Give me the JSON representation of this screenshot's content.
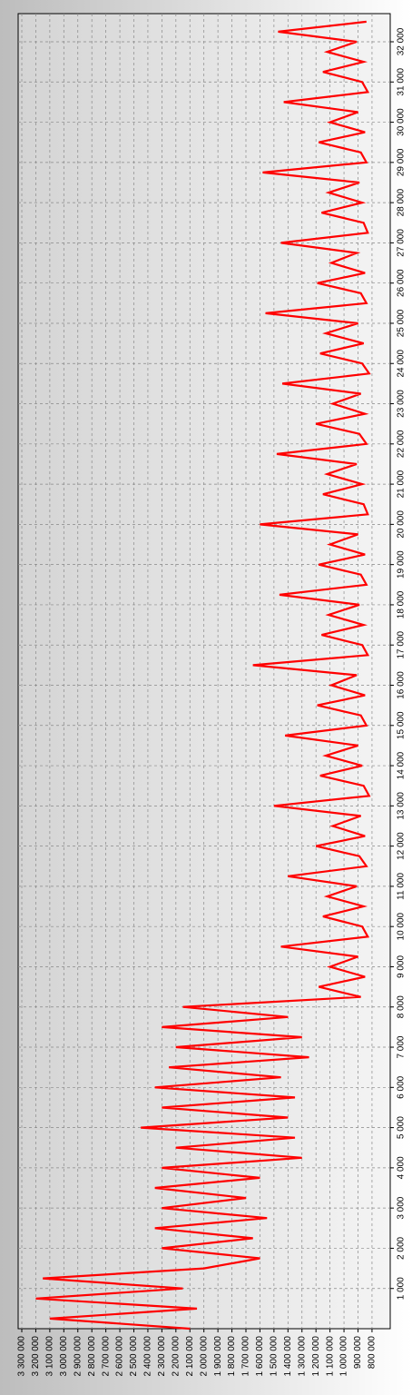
{
  "chart_data": {
    "type": "line",
    "orientation": "rotated",
    "x": [
      0,
      250,
      500,
      750,
      1000,
      1250,
      1500,
      1750,
      2000,
      2250,
      2500,
      2750,
      3000,
      3250,
      3500,
      3750,
      4000,
      4250,
      4500,
      4750,
      5000,
      5250,
      5500,
      5750,
      6000,
      6250,
      6500,
      6750,
      7000,
      7250,
      7500,
      7750,
      8000,
      8250,
      8500,
      8750,
      9000,
      9250,
      9500,
      9750,
      10000,
      10250,
      10500,
      10750,
      11000,
      11250,
      11500,
      11750,
      12000,
      12250,
      12500,
      12750,
      13000,
      13250,
      13500,
      13750,
      14000,
      14250,
      14500,
      14750,
      15000,
      15250,
      15500,
      15750,
      16000,
      16250,
      16500,
      16750,
      17000,
      17250,
      17500,
      17750,
      18000,
      18250,
      18500,
      18750,
      19000,
      19250,
      19500,
      19750,
      20000,
      20250,
      20500,
      20750,
      21000,
      21250,
      21500,
      21750,
      22000,
      22250,
      22500,
      22750,
      23000,
      23250,
      23500,
      23750,
      24000,
      24250,
      24500,
      24750,
      25000,
      25250,
      25500,
      25750,
      26000,
      26250,
      26500,
      26750,
      27000,
      27250,
      27500,
      27750,
      28000,
      28250,
      28500,
      28750,
      29000,
      29250,
      29500,
      29750,
      30000,
      30250,
      30500,
      30750,
      31000,
      31250,
      31500,
      31750,
      32000,
      32250,
      32500
    ],
    "series": [
      {
        "name": "series",
        "color": "#ff0000",
        "values": [
          2100000,
          3100000,
          2050000,
          3200000,
          2150000,
          3150000,
          2000000,
          1600000,
          2300000,
          1650000,
          2350000,
          1550000,
          2300000,
          1700000,
          2350000,
          1600000,
          2300000,
          1300000,
          2200000,
          1350000,
          2450000,
          1400000,
          2300000,
          1350000,
          2350000,
          1450000,
          2250000,
          1250000,
          2200000,
          1300000,
          2300000,
          1400000,
          2150000,
          880000,
          1180000,
          850000,
          1100000,
          900000,
          1450000,
          830000,
          870000,
          1150000,
          860000,
          1120000,
          910000,
          1400000,
          840000,
          890000,
          1200000,
          850000,
          1080000,
          880000,
          1500000,
          820000,
          860000,
          1170000,
          870000,
          1130000,
          900000,
          1420000,
          840000,
          880000,
          1190000,
          850000,
          1090000,
          910000,
          1650000,
          830000,
          870000,
          1160000,
          860000,
          1110000,
          890000,
          1460000,
          840000,
          880000,
          1180000,
          850000,
          1100000,
          900000,
          1600000,
          830000,
          860000,
          1150000,
          870000,
          1120000,
          910000,
          1480000,
          840000,
          890000,
          1200000,
          850000,
          1080000,
          880000,
          1440000,
          820000,
          870000,
          1170000,
          860000,
          1130000,
          900000,
          1560000,
          840000,
          880000,
          1190000,
          850000,
          1090000,
          910000,
          1450000,
          830000,
          860000,
          1160000,
          870000,
          1110000,
          890000,
          1580000,
          840000,
          880000,
          1180000,
          850000,
          1100000,
          900000,
          1430000,
          830000,
          870000,
          1150000,
          860000,
          1120000,
          910000,
          1470000,
          840000
        ]
      }
    ],
    "xlim": [
      0,
      32700
    ],
    "ylim": [
      670000,
      3326000
    ],
    "xticks": [
      {
        "value": 1000,
        "label": "1 000"
      },
      {
        "value": 2000,
        "label": "2 000"
      },
      {
        "value": 3000,
        "label": "3 000"
      },
      {
        "value": 4000,
        "label": "4 000"
      },
      {
        "value": 5000,
        "label": "5 000"
      },
      {
        "value": 6000,
        "label": "6 000"
      },
      {
        "value": 7000,
        "label": "7 000"
      },
      {
        "value": 8000,
        "label": "8 000"
      },
      {
        "value": 9000,
        "label": "9 000"
      },
      {
        "value": 10000,
        "label": "10 000"
      },
      {
        "value": 11000,
        "label": "11 000"
      },
      {
        "value": 12000,
        "label": "12 000"
      },
      {
        "value": 13000,
        "label": "13 000"
      },
      {
        "value": 14000,
        "label": "14 000"
      },
      {
        "value": 15000,
        "label": "15 000"
      },
      {
        "value": 16000,
        "label": "16 000"
      },
      {
        "value": 17000,
        "label": "17 000"
      },
      {
        "value": 18000,
        "label": "18 000"
      },
      {
        "value": 19000,
        "label": "19 000"
      },
      {
        "value": 20000,
        "label": "20 000"
      },
      {
        "value": 21000,
        "label": "21 000"
      },
      {
        "value": 22000,
        "label": "22 000"
      },
      {
        "value": 23000,
        "label": "23 000"
      },
      {
        "value": 24000,
        "label": "24 000"
      },
      {
        "value": 25000,
        "label": "25 000"
      },
      {
        "value": 26000,
        "label": "26 000"
      },
      {
        "value": 27000,
        "label": "27 000"
      },
      {
        "value": 28000,
        "label": "28 000"
      },
      {
        "value": 29000,
        "label": "29 000"
      },
      {
        "value": 30000,
        "label": "30 000"
      },
      {
        "value": 31000,
        "label": "31 000"
      },
      {
        "value": 32000,
        "label": "32 000"
      }
    ],
    "yticks": [
      {
        "value": 3300000,
        "label": "3 300 000"
      },
      {
        "value": 3200000,
        "label": "3 200 000"
      },
      {
        "value": 3100000,
        "label": "3 100 000"
      },
      {
        "value": 3000000,
        "label": "3 000 000"
      },
      {
        "value": 2900000,
        "label": "2 900 000"
      },
      {
        "value": 2800000,
        "label": "2 800 000"
      },
      {
        "value": 2700000,
        "label": "2 700 000"
      },
      {
        "value": 2600000,
        "label": "2 600 000"
      },
      {
        "value": 2500000,
        "label": "2 500 000"
      },
      {
        "value": 2400000,
        "label": "2 400 000"
      },
      {
        "value": 2300000,
        "label": "2 300 000"
      },
      {
        "value": 2200000,
        "label": "2 200 000"
      },
      {
        "value": 2100000,
        "label": "2 100 000"
      },
      {
        "value": 2000000,
        "label": "2 000 000"
      },
      {
        "value": 1900000,
        "label": "1 900 000"
      },
      {
        "value": 1800000,
        "label": "1 800 000"
      },
      {
        "value": 1700000,
        "label": "1 700 000"
      },
      {
        "value": 1600000,
        "label": "1 600 000"
      },
      {
        "value": 1500000,
        "label": "1 500 000"
      },
      {
        "value": 1400000,
        "label": "1 400 000"
      },
      {
        "value": 1300000,
        "label": "1 300 000"
      },
      {
        "value": 1200000,
        "label": "1 200 000"
      },
      {
        "value": 1100000,
        "label": "1 100 000"
      },
      {
        "value": 1000000,
        "label": "1 000 000"
      },
      {
        "value": 900000,
        "label": "900 000"
      },
      {
        "value": 800000,
        "label": "800 000"
      }
    ],
    "grid": true
  }
}
